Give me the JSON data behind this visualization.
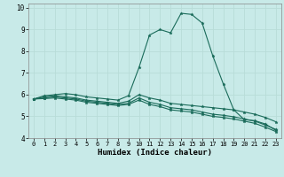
{
  "title": "",
  "xlabel": "Humidex (Indice chaleur)",
  "ylabel": "",
  "background_color": "#c8eae8",
  "grid_color": "#b8dcd8",
  "line_color": "#1a6b5a",
  "xlim": [
    -0.5,
    23.5
  ],
  "ylim": [
    4,
    10.2
  ],
  "yticks": [
    4,
    5,
    6,
    7,
    8,
    9,
    10
  ],
  "xticks": [
    0,
    1,
    2,
    3,
    4,
    5,
    6,
    7,
    8,
    9,
    10,
    11,
    12,
    13,
    14,
    15,
    16,
    17,
    18,
    19,
    20,
    21,
    22,
    23
  ],
  "series": [
    {
      "x": [
        0,
        1,
        2,
        3,
        4,
        5,
        6,
        7,
        8,
        9,
        10,
        11,
        12,
        13,
        14,
        15,
        16,
        17,
        18,
        19,
        20,
        21,
        22,
        23
      ],
      "y": [
        5.8,
        5.95,
        6.0,
        6.05,
        6.0,
        5.9,
        5.85,
        5.8,
        5.75,
        5.95,
        7.25,
        8.75,
        9.0,
        8.85,
        9.75,
        9.7,
        9.3,
        7.8,
        6.5,
        5.3,
        4.85,
        4.8,
        4.65,
        4.35
      ]
    },
    {
      "x": [
        0,
        1,
        2,
        3,
        4,
        5,
        6,
        7,
        8,
        9,
        10,
        11,
        12,
        13,
        14,
        15,
        16,
        17,
        18,
        19,
        20,
        21,
        22,
        23
      ],
      "y": [
        5.8,
        5.9,
        5.95,
        5.9,
        5.85,
        5.75,
        5.7,
        5.65,
        5.6,
        5.7,
        6.0,
        5.85,
        5.75,
        5.6,
        5.55,
        5.5,
        5.45,
        5.4,
        5.35,
        5.3,
        5.2,
        5.1,
        4.95,
        4.75
      ]
    },
    {
      "x": [
        0,
        1,
        2,
        3,
        4,
        5,
        6,
        7,
        8,
        9,
        10,
        11,
        12,
        13,
        14,
        15,
        16,
        17,
        18,
        19,
        20,
        21,
        22,
        23
      ],
      "y": [
        5.8,
        5.85,
        5.9,
        5.85,
        5.8,
        5.7,
        5.65,
        5.6,
        5.55,
        5.6,
        5.85,
        5.65,
        5.55,
        5.4,
        5.35,
        5.3,
        5.2,
        5.1,
        5.05,
        4.98,
        4.88,
        4.78,
        4.6,
        4.4
      ]
    },
    {
      "x": [
        0,
        1,
        2,
        3,
        4,
        5,
        6,
        7,
        8,
        9,
        10,
        11,
        12,
        13,
        14,
        15,
        16,
        17,
        18,
        19,
        20,
        21,
        22,
        23
      ],
      "y": [
        5.8,
        5.82,
        5.85,
        5.8,
        5.75,
        5.65,
        5.6,
        5.55,
        5.5,
        5.55,
        5.75,
        5.55,
        5.45,
        5.3,
        5.25,
        5.2,
        5.1,
        5.0,
        4.95,
        4.88,
        4.78,
        4.68,
        4.5,
        4.3
      ]
    }
  ]
}
